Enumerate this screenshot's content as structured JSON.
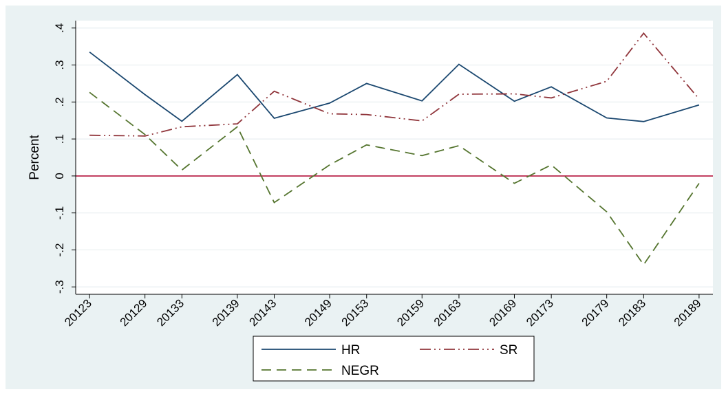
{
  "chart_data": {
    "type": "line",
    "title": "",
    "xlabel": "",
    "ylabel": "Percent",
    "categories": [
      "20123",
      "20129",
      "20133",
      "20139",
      "20143",
      "20149",
      "20153",
      "20159",
      "20163",
      "20169",
      "20173",
      "20179",
      "20183",
      "20189"
    ],
    "x_numeric": [
      20123,
      20129,
      20133,
      20139,
      20143,
      20149,
      20153,
      20159,
      20163,
      20169,
      20173,
      20179,
      20183,
      20189
    ],
    "ylim": [
      -0.32,
      0.42
    ],
    "yticks": [
      0.4,
      0.3,
      0.2,
      0.1,
      0,
      -0.1,
      -0.2,
      -0.3
    ],
    "ytick_labels": [
      ".4",
      ".3",
      ".2",
      ".1",
      "0",
      "-.1",
      "-.2",
      "-.3"
    ],
    "grid": true,
    "reference_line": {
      "y": 0,
      "color": "#b5143c"
    },
    "legend_placement": "bottom",
    "series": [
      {
        "name": "HR",
        "color": "#1a476f",
        "dash": "solid",
        "values": [
          0.335,
          0.22,
          0.148,
          0.274,
          0.156,
          0.197,
          0.25,
          0.203,
          0.302,
          0.202,
          0.241,
          0.157,
          0.147,
          0.192
        ]
      },
      {
        "name": "SR",
        "color": "#90353b",
        "dash": "dash-dot",
        "values": [
          0.11,
          0.108,
          0.133,
          0.141,
          0.229,
          0.168,
          0.166,
          0.149,
          0.221,
          0.222,
          0.211,
          0.256,
          0.386,
          0.208
        ]
      },
      {
        "name": "NEGR",
        "color": "#55752f",
        "dash": "dashed",
        "values": [
          0.226,
          0.112,
          0.016,
          0.133,
          -0.072,
          0.03,
          0.084,
          0.055,
          0.082,
          -0.02,
          0.03,
          -0.097,
          -0.24,
          -0.02
        ]
      }
    ]
  }
}
